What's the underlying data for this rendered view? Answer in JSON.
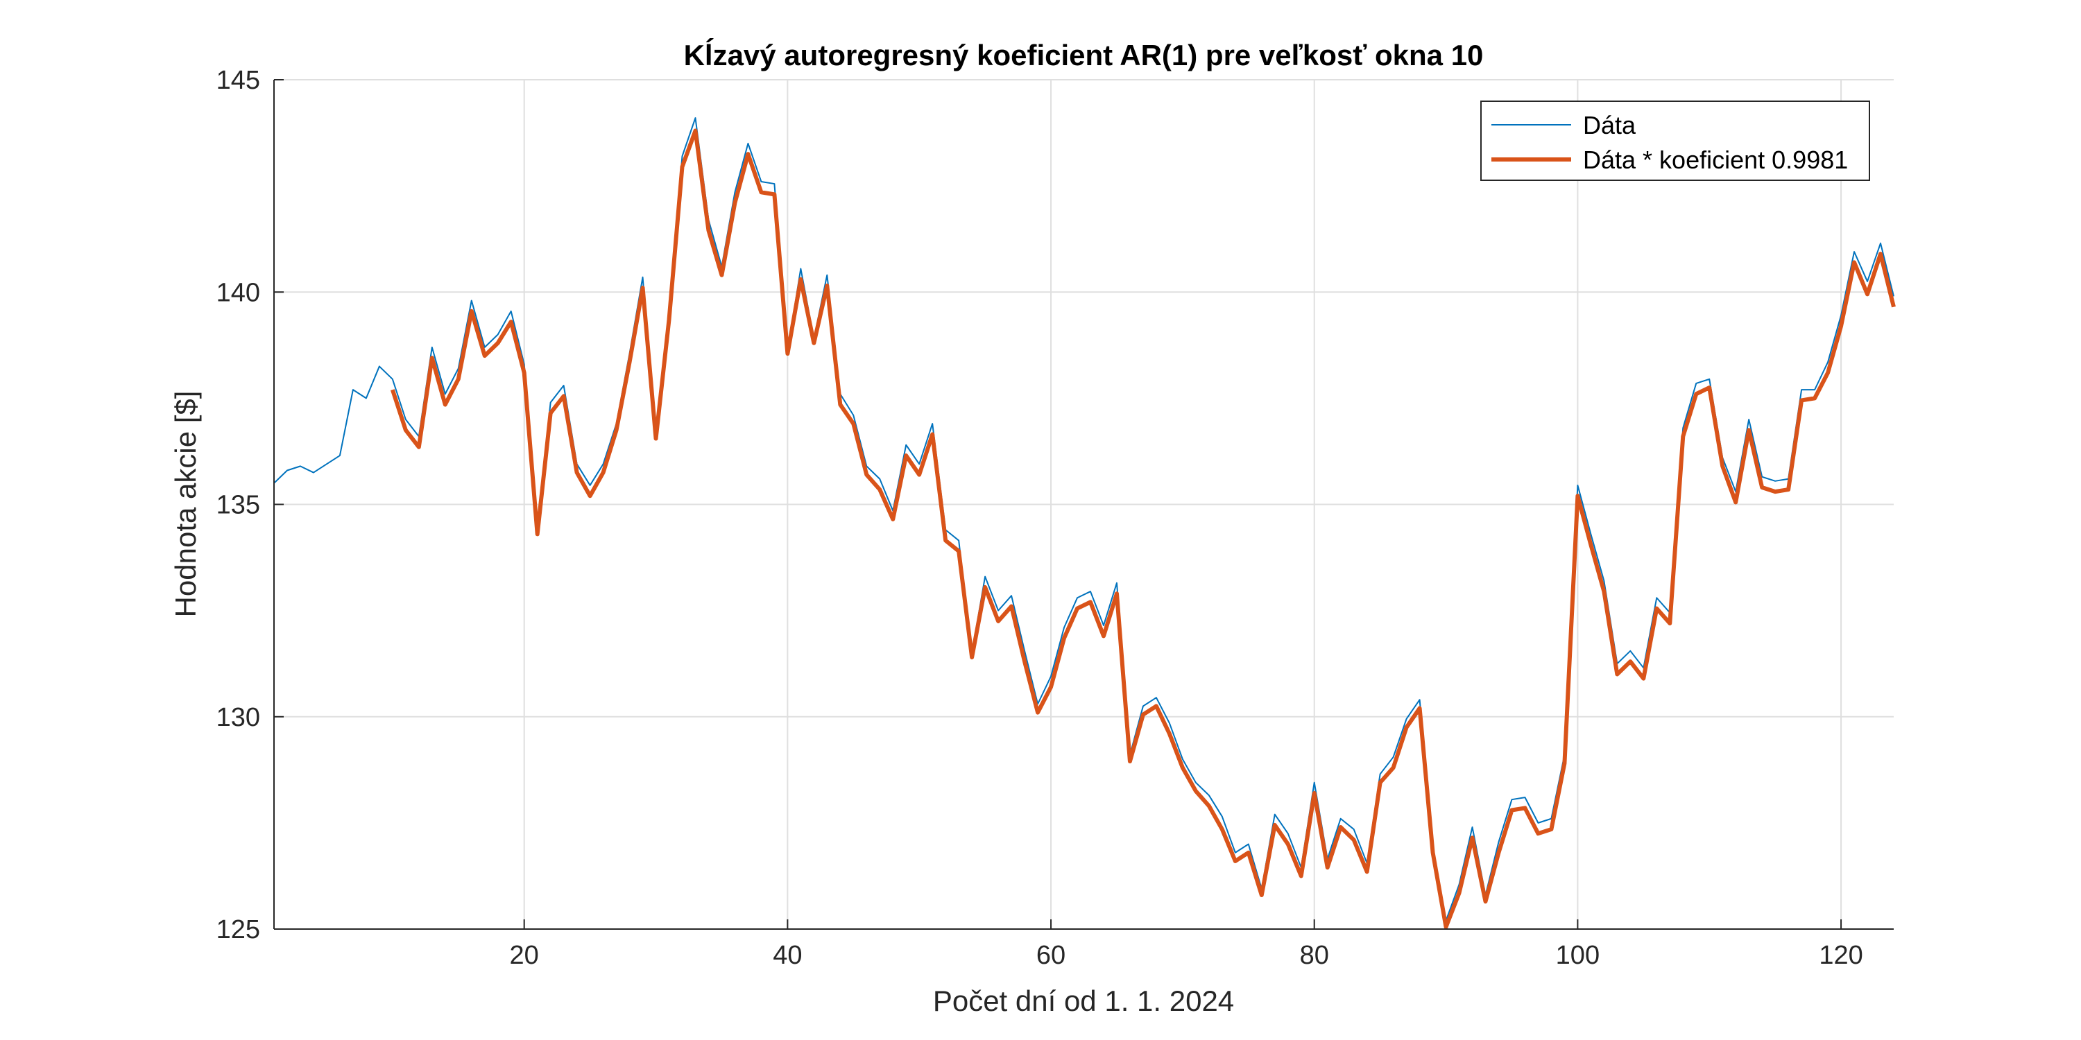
{
  "chart_data": {
    "type": "line",
    "title": "Kĺzavý autoregresný koeficient AR(1) pre veľkosť okna 10",
    "xlabel": "Počet dní od 1. 1. 2024",
    "ylabel": "Hodnota akcie [$]",
    "xlim": [
      1,
      124
    ],
    "ylim": [
      125,
      145
    ],
    "xticks": [
      20,
      40,
      60,
      80,
      100,
      120
    ],
    "yticks": [
      125,
      130,
      135,
      140,
      145
    ],
    "grid": true,
    "legend_position": "top-right",
    "series": [
      {
        "name": "Dáta",
        "color": "#0072BD",
        "x_start": 1,
        "values": [
          135.5,
          135.8,
          135.9,
          135.75,
          135.95,
          136.15,
          137.7,
          137.5,
          138.25,
          137.95,
          137.0,
          136.6,
          138.7,
          137.6,
          138.2,
          139.8,
          138.7,
          139.0,
          139.55,
          138.3,
          134.4,
          137.4,
          137.8,
          135.95,
          135.45,
          135.95,
          136.9,
          138.55,
          140.35,
          136.6,
          139.6,
          143.2,
          144.1,
          141.7,
          140.6,
          142.35,
          143.5,
          142.6,
          142.55,
          138.6,
          140.55,
          138.9,
          140.4,
          137.6,
          137.1,
          135.9,
          135.6,
          134.85,
          136.4,
          135.95,
          136.9,
          134.4,
          134.15,
          131.5,
          133.3,
          132.5,
          132.85,
          131.55,
          130.3,
          130.95,
          132.1,
          132.8,
          132.95,
          132.15,
          133.15,
          129.1,
          130.25,
          130.45,
          129.85,
          129.0,
          128.45,
          128.15,
          127.65,
          126.8,
          127.0,
          125.95,
          127.7,
          127.25,
          126.45,
          128.45,
          126.65,
          127.6,
          127.35,
          126.55,
          128.65,
          129.05,
          129.95,
          130.4,
          126.95,
          125.2,
          126.05,
          127.4,
          125.8,
          127.05,
          128.05,
          128.1,
          127.5,
          127.6,
          129.1,
          135.45,
          134.3,
          133.2,
          131.25,
          131.55,
          131.15,
          132.8,
          132.45,
          136.8,
          137.85,
          137.95,
          136.1,
          135.3,
          137.0,
          135.65,
          135.55,
          135.6,
          137.7,
          137.7,
          138.35,
          139.45,
          140.95,
          140.25,
          141.15,
          139.9
        ]
      },
      {
        "name": "Dáta * koeficient 0.9981",
        "color": "#D95319",
        "x_start": 10,
        "values": [
          137.7,
          136.75,
          136.35,
          138.45,
          137.35,
          137.95,
          139.55,
          138.5,
          138.8,
          139.3,
          138.1,
          134.3,
          137.15,
          137.55,
          135.75,
          135.2,
          135.75,
          136.75,
          138.35,
          140.1,
          136.55,
          139.35,
          142.95,
          143.8,
          141.45,
          140.4,
          142.1,
          143.25,
          142.35,
          142.3,
          138.55,
          140.3,
          138.8,
          140.15,
          137.35,
          136.9,
          135.7,
          135.35,
          134.65,
          136.15,
          135.7,
          136.65,
          134.15,
          133.9,
          131.4,
          133.05,
          132.25,
          132.6,
          131.3,
          130.1,
          130.7,
          131.85,
          132.55,
          132.7,
          131.9,
          132.9,
          128.95,
          130.05,
          130.25,
          129.6,
          128.8,
          128.25,
          127.9,
          127.35,
          126.6,
          126.8,
          125.8,
          127.45,
          127.0,
          126.25,
          128.2,
          126.45,
          127.4,
          127.1,
          126.35,
          128.45,
          128.8,
          129.75,
          130.2,
          126.8,
          125.05,
          125.85,
          127.15,
          125.65,
          126.8,
          127.8,
          127.85,
          127.25,
          127.35,
          128.9,
          135.2,
          134.05,
          132.95,
          131.0,
          131.3,
          130.9,
          132.55,
          132.2,
          136.6,
          137.6,
          137.75,
          135.9,
          135.05,
          136.75,
          135.4,
          135.3,
          135.35,
          137.45,
          137.5,
          138.1,
          139.2,
          140.7,
          139.95,
          140.9,
          139.65
        ]
      }
    ]
  }
}
